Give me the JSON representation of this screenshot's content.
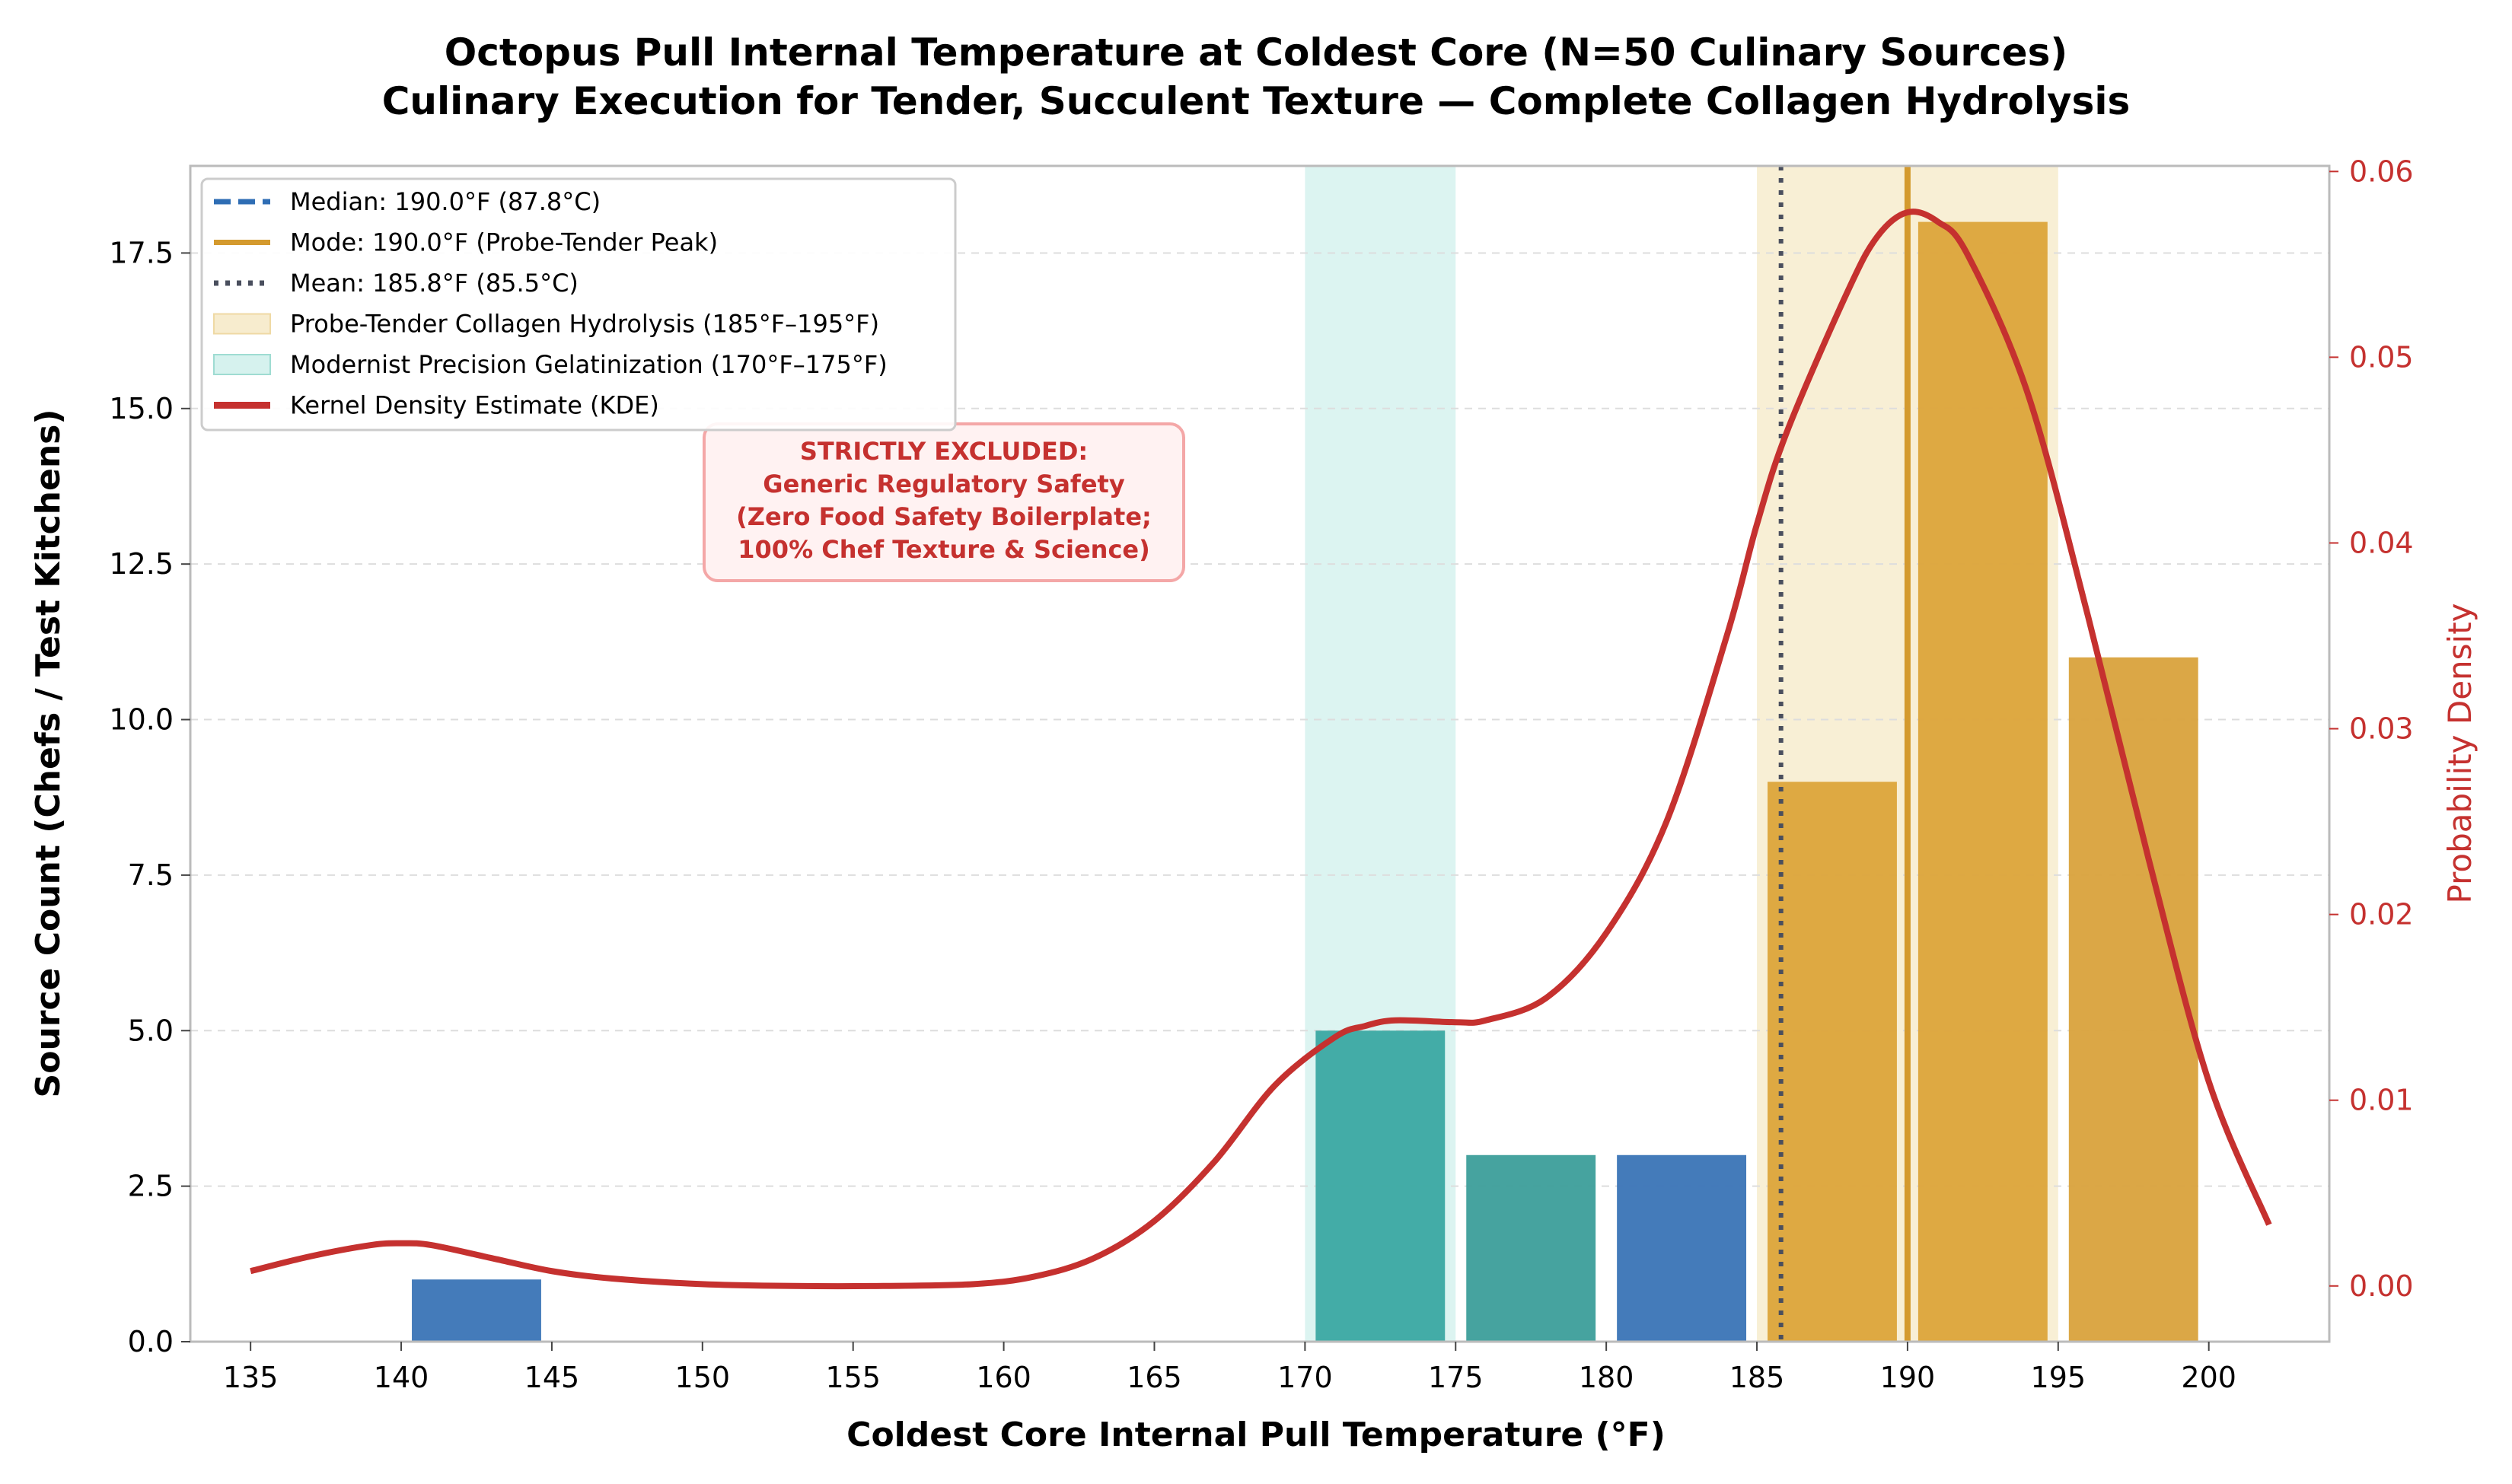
{
  "chart_data": {
    "type": "bar",
    "title": "Octopus Pull Internal Temperature at Coldest Core (N=50 Culinary Sources)",
    "subtitle": "Culinary Execution for Tender, Succulent Texture — Complete Collagen Hydrolysis",
    "xlabel": "Coldest Core Internal Pull Temperature (°F)",
    "ylabel": "Source Count (Chefs / Test Kitchens)",
    "y2label": "Probability Density",
    "xlim": [
      133,
      204
    ],
    "ylim": [
      0,
      18.9
    ],
    "y2lim": [
      -0.003,
      0.0603
    ],
    "xticks": [
      135,
      140,
      145,
      150,
      155,
      160,
      165,
      170,
      175,
      180,
      185,
      190,
      195,
      200
    ],
    "yticks": [
      0.0,
      2.5,
      5.0,
      7.5,
      10.0,
      12.5,
      15.0,
      17.5
    ],
    "y2ticks": [
      0.0,
      0.01,
      0.02,
      0.03,
      0.04,
      0.05,
      0.06
    ],
    "grid": "horizontal dashed",
    "legend_position": "upper-left",
    "bins": [
      {
        "start": 140,
        "end": 145,
        "count": 1,
        "color": "#3a74b6"
      },
      {
        "start": 170,
        "end": 175,
        "count": 5,
        "color": "#3aa8a2"
      },
      {
        "start": 175,
        "end": 180,
        "count": 3,
        "color": "#3c9e9a"
      },
      {
        "start": 180,
        "end": 185,
        "count": 3,
        "color": "#3a74b6"
      },
      {
        "start": 185,
        "end": 190,
        "count": 9,
        "color": "#dca43a"
      },
      {
        "start": 190,
        "end": 195,
        "count": 18,
        "color": "#dca43a"
      },
      {
        "start": 195,
        "end": 200,
        "count": 11,
        "color": "#d9a23c"
      }
    ],
    "bands": [
      {
        "label": "Probe-Tender Collagen Hydrolysis (185°F–195°F)",
        "start": 185,
        "end": 195,
        "color": "#f7ecce"
      },
      {
        "label": "Modernist Precision Gelatinization (170°F–175°F)",
        "start": 170,
        "end": 175,
        "color": "#d6f2ee"
      }
    ],
    "vlines": [
      {
        "label": "Median: 190.0°F (87.8°C)",
        "x": 190.0,
        "style": "dashed",
        "color": "#2e6db4"
      },
      {
        "label": "Mode: 190.0°F (Probe-Tender Peak)",
        "x": 190.0,
        "style": "solid",
        "color": "#d49a2e"
      },
      {
        "label": "Mean: 185.8°F (85.5°C)",
        "x": 185.8,
        "style": "dotted",
        "color": "#4a4f5e"
      }
    ],
    "kde": {
      "label": "Kernel Density Estimate (KDE)",
      "color": "#c5312f",
      "x": [
        135,
        137,
        139,
        140,
        141,
        143,
        145,
        147,
        150,
        153,
        156,
        159,
        161,
        163,
        165,
        167,
        169,
        171,
        172,
        173,
        175,
        176,
        178,
        180,
        182,
        184,
        185,
        186,
        188,
        189,
        190,
        191,
        192,
        194,
        196,
        198,
        200,
        202
      ],
      "y": [
        0.0008,
        0.0016,
        0.0022,
        0.0023,
        0.0022,
        0.0015,
        0.0008,
        0.0004,
        0.0001,
        0.0,
        0.0,
        0.0001,
        0.0005,
        0.0015,
        0.0035,
        0.0067,
        0.0108,
        0.0134,
        0.014,
        0.0143,
        0.0142,
        0.0143,
        0.0155,
        0.019,
        0.025,
        0.035,
        0.041,
        0.046,
        0.0535,
        0.0565,
        0.0578,
        0.0573,
        0.0555,
        0.048,
        0.036,
        0.023,
        0.011,
        0.0033
      ]
    },
    "annotation": "STRICTLY EXCLUDED:\nGeneric Regulatory Safety\n(Zero Food Safety Boilerplate;\n100% Chef Texture & Science)",
    "legend": [
      {
        "label": "Median: 190.0°F (87.8°C)",
        "kind": "dashed",
        "color": "#2e6db4"
      },
      {
        "label": "Mode: 190.0°F (Probe-Tender Peak)",
        "kind": "solid",
        "color": "#d49a2e"
      },
      {
        "label": "Mean: 185.8°F (85.5°C)",
        "kind": "dotted",
        "color": "#4a4f5e"
      },
      {
        "label": "Probe-Tender Collagen Hydrolysis (185°F–195°F)",
        "kind": "patch",
        "color": "#f7ecce",
        "edge": "#efd9a4"
      },
      {
        "label": "Modernist Precision Gelatinization (170°F–175°F)",
        "kind": "patch",
        "color": "#d6f2ee",
        "edge": "#9fdcd2"
      },
      {
        "label": "Kernel Density Estimate (KDE)",
        "kind": "thick",
        "color": "#c5312f"
      }
    ]
  }
}
